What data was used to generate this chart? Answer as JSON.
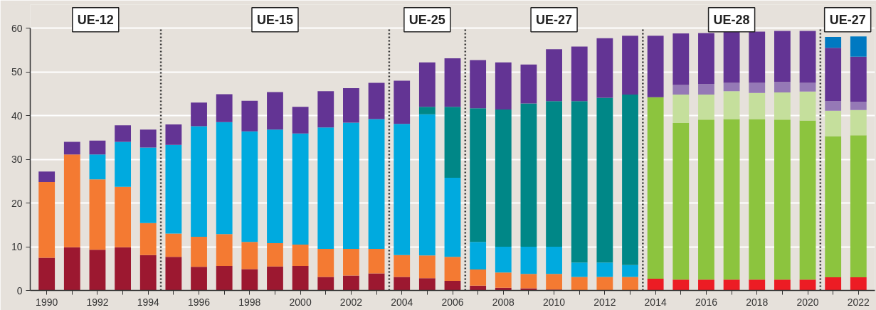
{
  "chart_data": {
    "type": "bar",
    "stacked": true,
    "x": [
      1990,
      1991,
      1992,
      1993,
      1994,
      1995,
      1996,
      1997,
      1998,
      1999,
      2000,
      2001,
      2002,
      2003,
      2004,
      2005,
      2006,
      2007,
      2008,
      2009,
      2010,
      2011,
      2012,
      2013,
      2014,
      2015,
      2016,
      2017,
      2018,
      2019,
      2020,
      2021,
      2022
    ],
    "series": [
      {
        "color": "#9c1830",
        "values": [
          7.5,
          9.9,
          9.3,
          9.9,
          8.1,
          7.7,
          5.4,
          5.6,
          4.9,
          5.5,
          5.6,
          3.1,
          3.4,
          3.9,
          3.1,
          2.8,
          2.2,
          1.1,
          0.6,
          0.5,
          0.2,
          null,
          null,
          null,
          null,
          null,
          null,
          null,
          null,
          null,
          null,
          null,
          null
        ]
      },
      {
        "color": "#ec1c24",
        "values": [
          null,
          null,
          null,
          null,
          null,
          null,
          null,
          null,
          null,
          null,
          null,
          null,
          null,
          null,
          null,
          null,
          null,
          null,
          null,
          null,
          null,
          null,
          null,
          null,
          2.7,
          2.5,
          2.5,
          2.5,
          2.5,
          2.5,
          2.5,
          3.0,
          3.0
        ]
      },
      {
        "color": "#f47a32",
        "values": [
          17.3,
          21.2,
          16.1,
          13.8,
          7.3,
          5.3,
          6.9,
          7.3,
          6.2,
          5.3,
          4.9,
          6.4,
          6.1,
          5.6,
          5.0,
          5.2,
          5.5,
          3.7,
          3.5,
          3.3,
          3.6,
          3.1,
          3.1,
          3.1,
          null,
          null,
          null,
          null,
          null,
          null,
          null,
          null,
          null
        ]
      },
      {
        "color": "#8cc43e",
        "values": [
          null,
          null,
          null,
          null,
          null,
          null,
          null,
          null,
          null,
          null,
          null,
          null,
          null,
          null,
          null,
          null,
          null,
          null,
          null,
          null,
          null,
          null,
          null,
          null,
          41.5,
          35.8,
          36.6,
          36.7,
          36.7,
          36.6,
          36.4,
          32.3,
          32.5
        ]
      },
      {
        "color": "#00aadf",
        "values": [
          null,
          null,
          5.7,
          10.3,
          17.3,
          20.3,
          25.3,
          25.6,
          25.3,
          26.0,
          25.4,
          27.8,
          28.9,
          29.7,
          30.0,
          32.3,
          18.1,
          6.3,
          5.9,
          6.2,
          6.2,
          3.3,
          3.3,
          2.7,
          null,
          null,
          null,
          null,
          null,
          null,
          null,
          null,
          null
        ]
      },
      {
        "color": "#008787",
        "values": [
          null,
          null,
          null,
          null,
          null,
          null,
          null,
          null,
          null,
          null,
          null,
          null,
          null,
          null,
          null,
          1.7,
          16.2,
          30.6,
          31.4,
          32.8,
          33.3,
          36.9,
          37.7,
          39.0,
          null,
          null,
          null,
          null,
          null,
          null,
          null,
          null,
          null
        ]
      },
      {
        "color": "#c5df9c",
        "values": [
          null,
          null,
          null,
          null,
          null,
          null,
          null,
          null,
          null,
          null,
          null,
          null,
          null,
          null,
          null,
          null,
          null,
          null,
          null,
          null,
          null,
          null,
          null,
          null,
          null,
          6.5,
          5.7,
          6.4,
          6.0,
          6.2,
          6.6,
          5.8,
          5.8
        ]
      },
      {
        "color": "#9579b6",
        "values": [
          null,
          null,
          null,
          null,
          null,
          null,
          null,
          null,
          null,
          null,
          null,
          null,
          null,
          null,
          null,
          null,
          null,
          null,
          null,
          null,
          null,
          null,
          null,
          null,
          null,
          2.2,
          2.4,
          1.9,
          2.3,
          2.4,
          2.0,
          2.2,
          1.9
        ]
      },
      {
        "color": "#633494",
        "values": [
          2.4,
          2.9,
          3.2,
          3.8,
          4.1,
          4.7,
          5.4,
          6.4,
          7.0,
          8.6,
          6.1,
          8.3,
          7.9,
          8.3,
          9.9,
          10.2,
          11.1,
          11.0,
          10.8,
          8.9,
          11.9,
          12.5,
          13.6,
          13.5,
          14.1,
          11.8,
          11.7,
          11.7,
          11.7,
          11.7,
          11.9,
          12.2,
          10.3
        ]
      },
      {
        "color": "#0079c1",
        "values": [
          null,
          null,
          null,
          null,
          null,
          null,
          null,
          null,
          null,
          null,
          null,
          null,
          null,
          null,
          null,
          null,
          null,
          null,
          null,
          null,
          null,
          null,
          null,
          null,
          null,
          null,
          null,
          null,
          null,
          null,
          null,
          2.5,
          4.6
        ]
      }
    ],
    "xlim": [
      1989.35,
      2022.65
    ],
    "xticks": [
      1990,
      {
        "value": 1991,
        "label": null
      },
      1992,
      {
        "value": 1993,
        "label": null
      },
      1994,
      {
        "value": 1995,
        "label": null
      },
      1996,
      {
        "value": 1997,
        "label": null
      },
      1998,
      {
        "value": 1999,
        "label": null
      },
      2000,
      {
        "value": 2001,
        "label": null
      },
      2002,
      {
        "value": 2003,
        "label": null
      },
      2004,
      {
        "value": 2005,
        "label": null
      },
      2006,
      {
        "value": 2007,
        "label": null
      },
      2008,
      {
        "value": 2009,
        "label": null
      },
      2010,
      {
        "value": 2011,
        "label": null
      },
      2012,
      {
        "value": 2013,
        "label": null
      },
      2014,
      {
        "value": 2015,
        "label": null
      },
      2016,
      {
        "value": 2017,
        "label": null
      },
      2018,
      {
        "value": 2019,
        "label": null
      },
      2020,
      {
        "value": 2021,
        "label": null
      },
      2022
    ],
    "ylim": [
      0,
      60
    ],
    "yticks": [
      0,
      10,
      20,
      30,
      40,
      50,
      60
    ],
    "grid": "y",
    "ref_lines": [
      {
        "axis": "x",
        "value": 1994.5,
        "color": "#333333",
        "line_style": "dotted"
      },
      {
        "axis": "x",
        "value": 2003.5,
        "color": "#333333",
        "line_style": "dotted"
      },
      {
        "axis": "x",
        "value": 2006.5,
        "color": "#333333",
        "line_style": "dotted"
      },
      {
        "axis": "x",
        "value": 2013.5,
        "color": "#333333",
        "line_style": "dotted"
      },
      {
        "axis": "x",
        "value": 2020.5,
        "color": "#333333",
        "line_style": "dotted"
      }
    ],
    "annotations": [
      "UE-12",
      "UE-15",
      "UE-25",
      "UE-27",
      "UE-28",
      "UE-27"
    ]
  }
}
